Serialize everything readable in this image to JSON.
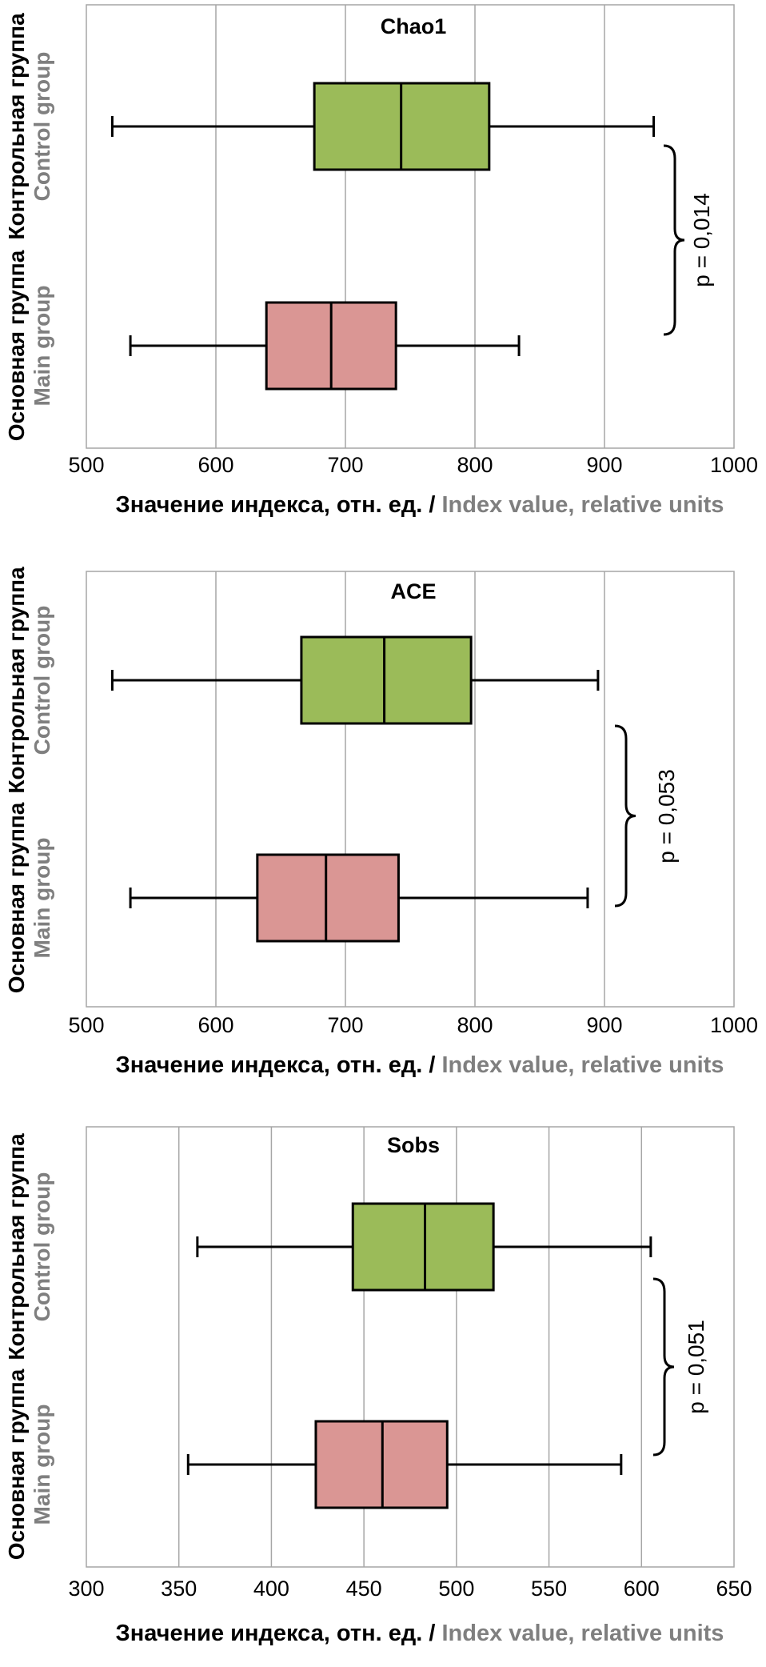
{
  "colors": {
    "control_fill": "#9bbb59",
    "main_fill": "#da9694",
    "grid": "#a6a6a6",
    "axis_text": "#000000",
    "english_text": "#7f7f7f"
  },
  "chart_data": [
    {
      "type": "boxplot",
      "title": "Chao1",
      "xlabel_ru": "Значение индекса, отн. ед. / ",
      "xlabel_en": "Index value, relative units",
      "xlim": [
        500,
        1000
      ],
      "xticks": [
        500,
        600,
        700,
        800,
        900,
        1000
      ],
      "grid": "vertical",
      "categories": [
        {
          "label_ru": "Контрольная группа",
          "label_en": "Control group",
          "color": "#9bbb59",
          "min": 520,
          "q1": 676,
          "median": 743,
          "q3": 811,
          "max": 938
        },
        {
          "label_ru": "Основная группа",
          "label_en": "Main group",
          "color": "#da9694",
          "min": 534,
          "q1": 639,
          "median": 689,
          "q3": 739,
          "max": 834
        }
      ],
      "annotation": "p = 0,014"
    },
    {
      "type": "boxplot",
      "title": "ACE",
      "xlabel_ru": "Значение индекса, отн. ед. / ",
      "xlabel_en": "Index value, relative units",
      "xlim": [
        500,
        1000
      ],
      "xticks": [
        500,
        600,
        700,
        800,
        900,
        1000
      ],
      "grid": "vertical",
      "categories": [
        {
          "label_ru": "Контрольная группа",
          "label_en": "Control group",
          "color": "#9bbb59",
          "min": 520,
          "q1": 666,
          "median": 730,
          "q3": 797,
          "max": 895
        },
        {
          "label_ru": "Основная группа",
          "label_en": "Main group",
          "color": "#da9694",
          "min": 534,
          "q1": 632,
          "median": 685,
          "q3": 741,
          "max": 887
        }
      ],
      "annotation": "p = 0,053"
    },
    {
      "type": "boxplot",
      "title": "Sobs",
      "xlabel_ru": "Значение индекса, отн. ед. / ",
      "xlabel_en": "Index value, relative units",
      "xlim": [
        300,
        650
      ],
      "xticks": [
        300,
        350,
        400,
        450,
        500,
        550,
        600,
        650
      ],
      "grid": "vertical",
      "categories": [
        {
          "label_ru": "Контрольная группа",
          "label_en": "Control group",
          "color": "#9bbb59",
          "min": 360,
          "q1": 444,
          "median": 483,
          "q3": 520,
          "max": 605
        },
        {
          "label_ru": "Основная группа",
          "label_en": "Main group",
          "color": "#da9694",
          "min": 355,
          "q1": 424,
          "median": 460,
          "q3": 495,
          "max": 589
        }
      ],
      "annotation": "p = 0,051"
    }
  ]
}
